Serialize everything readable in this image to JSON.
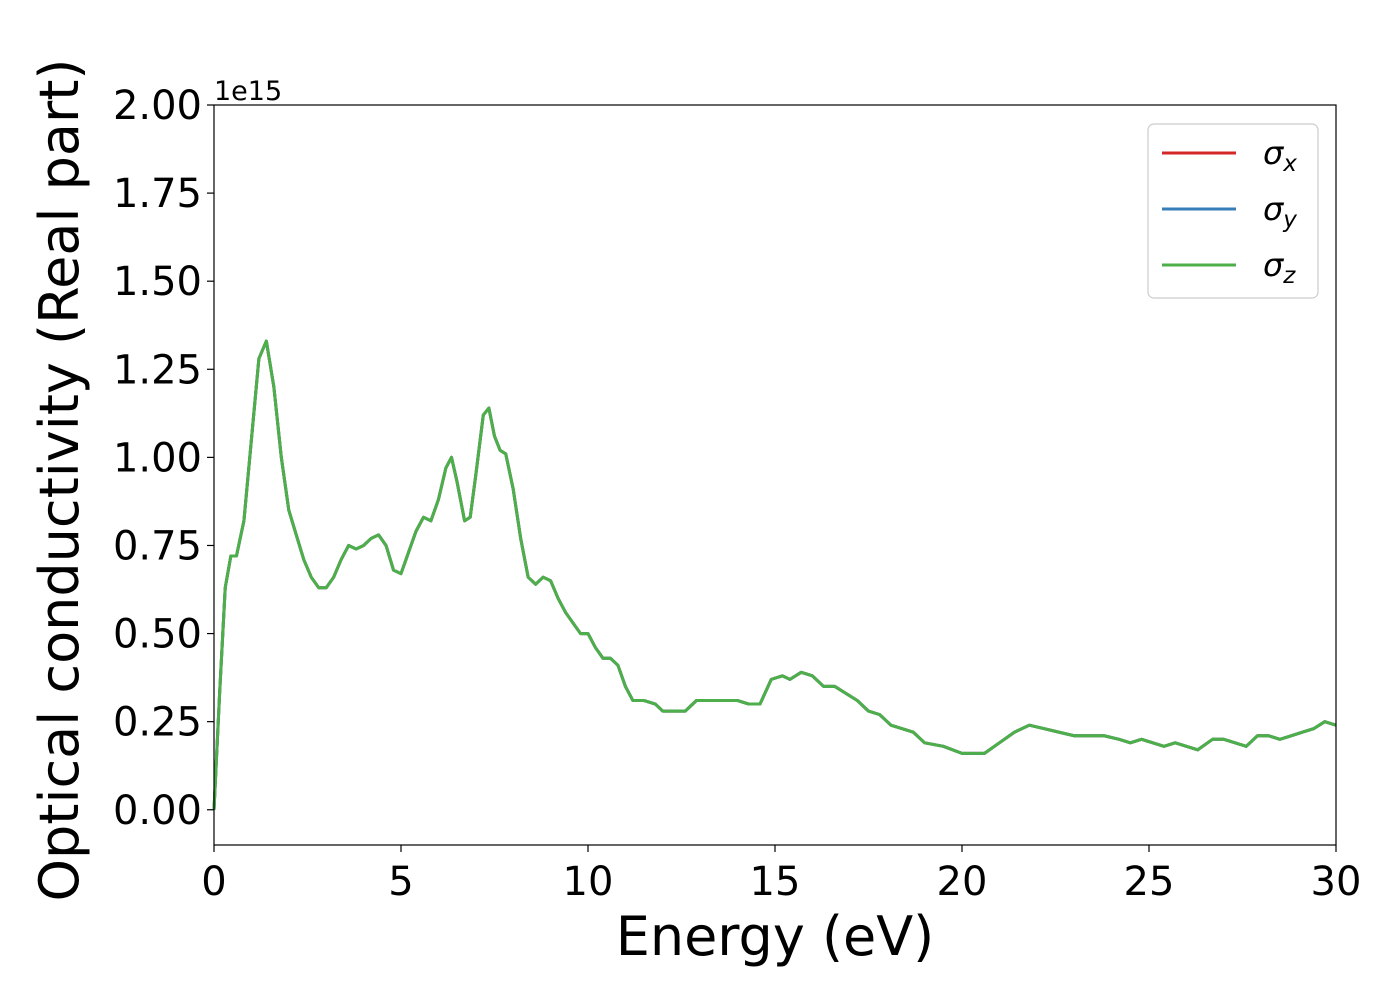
{
  "chart_data": {
    "type": "line",
    "xlabel": "Energy (eV)",
    "ylabel": "Optical conductivity (Real part)",
    "y_offset_label": "1e15",
    "xlim": [
      0,
      30
    ],
    "ylim": [
      -0.1,
      2.0
    ],
    "x_ticks": [
      0,
      5,
      10,
      15,
      20,
      25,
      30
    ],
    "x_tick_labels": [
      "0",
      "5",
      "10",
      "15",
      "20",
      "25",
      "30"
    ],
    "y_ticks": [
      0.0,
      0.25,
      0.5,
      0.75,
      1.0,
      1.25,
      1.5,
      1.75,
      2.0
    ],
    "y_tick_labels": [
      "0.00",
      "0.25",
      "0.50",
      "0.75",
      "1.00",
      "1.25",
      "1.50",
      "1.75",
      "2.00"
    ],
    "grid": false,
    "legend_position": "top-right",
    "x": [
      0.0,
      0.15,
      0.3,
      0.45,
      0.6,
      0.8,
      1.0,
      1.2,
      1.4,
      1.6,
      1.8,
      2.0,
      2.2,
      2.4,
      2.6,
      2.8,
      3.0,
      3.2,
      3.4,
      3.6,
      3.8,
      4.0,
      4.2,
      4.4,
      4.6,
      4.8,
      5.0,
      5.2,
      5.4,
      5.6,
      5.8,
      6.0,
      6.2,
      6.35,
      6.5,
      6.7,
      6.85,
      7.0,
      7.2,
      7.35,
      7.5,
      7.65,
      7.8,
      8.0,
      8.2,
      8.4,
      8.6,
      8.8,
      9.0,
      9.2,
      9.4,
      9.6,
      9.8,
      10.0,
      10.2,
      10.4,
      10.6,
      10.8,
      11.0,
      11.2,
      11.5,
      11.8,
      12.0,
      12.3,
      12.6,
      12.9,
      13.2,
      13.5,
      13.8,
      14.0,
      14.3,
      14.6,
      14.9,
      15.2,
      15.4,
      15.7,
      16.0,
      16.3,
      16.6,
      16.9,
      17.2,
      17.5,
      17.8,
      18.1,
      18.4,
      18.7,
      19.0,
      19.5,
      20.0,
      20.3,
      20.6,
      21.0,
      21.4,
      21.8,
      22.2,
      22.6,
      23.0,
      23.4,
      23.8,
      24.2,
      24.5,
      24.8,
      25.1,
      25.4,
      25.7,
      26.0,
      26.3,
      26.7,
      27.0,
      27.3,
      27.6,
      27.9,
      28.2,
      28.5,
      28.8,
      29.1,
      29.4,
      29.7,
      30.0
    ],
    "series": [
      {
        "name": "σ_x",
        "color": "#d62728",
        "values": [
          0.0,
          0.33,
          0.63,
          0.72,
          0.72,
          0.82,
          1.05,
          1.28,
          1.33,
          1.2,
          1.0,
          0.85,
          0.78,
          0.71,
          0.66,
          0.63,
          0.63,
          0.66,
          0.71,
          0.75,
          0.74,
          0.75,
          0.77,
          0.78,
          0.75,
          0.68,
          0.67,
          0.73,
          0.79,
          0.83,
          0.82,
          0.88,
          0.97,
          1.0,
          0.93,
          0.82,
          0.83,
          0.95,
          1.12,
          1.14,
          1.06,
          1.02,
          1.01,
          0.91,
          0.77,
          0.66,
          0.64,
          0.66,
          0.65,
          0.6,
          0.56,
          0.53,
          0.5,
          0.5,
          0.46,
          0.43,
          0.43,
          0.41,
          0.35,
          0.31,
          0.31,
          0.3,
          0.28,
          0.28,
          0.28,
          0.31,
          0.31,
          0.31,
          0.31,
          0.31,
          0.3,
          0.3,
          0.37,
          0.38,
          0.37,
          0.39,
          0.38,
          0.35,
          0.35,
          0.33,
          0.31,
          0.28,
          0.27,
          0.24,
          0.23,
          0.22,
          0.19,
          0.18,
          0.16,
          0.16,
          0.16,
          0.19,
          0.22,
          0.24,
          0.23,
          0.22,
          0.21,
          0.21,
          0.21,
          0.2,
          0.19,
          0.2,
          0.19,
          0.18,
          0.19,
          0.18,
          0.17,
          0.2,
          0.2,
          0.19,
          0.18,
          0.21,
          0.21,
          0.2,
          0.21,
          0.22,
          0.23,
          0.25,
          0.24
        ]
      },
      {
        "name": "σ_y",
        "color": "#377eb8",
        "values": [
          0.0,
          0.33,
          0.63,
          0.72,
          0.72,
          0.82,
          1.05,
          1.28,
          1.33,
          1.2,
          1.0,
          0.85,
          0.78,
          0.71,
          0.66,
          0.63,
          0.63,
          0.66,
          0.71,
          0.75,
          0.74,
          0.75,
          0.77,
          0.78,
          0.75,
          0.68,
          0.67,
          0.73,
          0.79,
          0.83,
          0.82,
          0.88,
          0.97,
          1.0,
          0.93,
          0.82,
          0.83,
          0.95,
          1.12,
          1.14,
          1.06,
          1.02,
          1.01,
          0.91,
          0.77,
          0.66,
          0.64,
          0.66,
          0.65,
          0.6,
          0.56,
          0.53,
          0.5,
          0.5,
          0.46,
          0.43,
          0.43,
          0.41,
          0.35,
          0.31,
          0.31,
          0.3,
          0.28,
          0.28,
          0.28,
          0.31,
          0.31,
          0.31,
          0.31,
          0.31,
          0.3,
          0.3,
          0.37,
          0.38,
          0.37,
          0.39,
          0.38,
          0.35,
          0.35,
          0.33,
          0.31,
          0.28,
          0.27,
          0.24,
          0.23,
          0.22,
          0.19,
          0.18,
          0.16,
          0.16,
          0.16,
          0.19,
          0.22,
          0.24,
          0.23,
          0.22,
          0.21,
          0.21,
          0.21,
          0.2,
          0.19,
          0.2,
          0.19,
          0.18,
          0.19,
          0.18,
          0.17,
          0.2,
          0.2,
          0.19,
          0.18,
          0.21,
          0.21,
          0.2,
          0.21,
          0.22,
          0.23,
          0.25,
          0.24
        ]
      },
      {
        "name": "σ_z",
        "color": "#4daf4a",
        "values": [
          0.0,
          0.33,
          0.63,
          0.72,
          0.72,
          0.82,
          1.05,
          1.28,
          1.33,
          1.2,
          1.0,
          0.85,
          0.78,
          0.71,
          0.66,
          0.63,
          0.63,
          0.66,
          0.71,
          0.75,
          0.74,
          0.75,
          0.77,
          0.78,
          0.75,
          0.68,
          0.67,
          0.73,
          0.79,
          0.83,
          0.82,
          0.88,
          0.97,
          1.0,
          0.93,
          0.82,
          0.83,
          0.95,
          1.12,
          1.14,
          1.06,
          1.02,
          1.01,
          0.91,
          0.77,
          0.66,
          0.64,
          0.66,
          0.65,
          0.6,
          0.56,
          0.53,
          0.5,
          0.5,
          0.46,
          0.43,
          0.43,
          0.41,
          0.35,
          0.31,
          0.31,
          0.3,
          0.28,
          0.28,
          0.28,
          0.31,
          0.31,
          0.31,
          0.31,
          0.31,
          0.3,
          0.3,
          0.37,
          0.38,
          0.37,
          0.39,
          0.38,
          0.35,
          0.35,
          0.33,
          0.31,
          0.28,
          0.27,
          0.24,
          0.23,
          0.22,
          0.19,
          0.18,
          0.16,
          0.16,
          0.16,
          0.19,
          0.22,
          0.24,
          0.23,
          0.22,
          0.21,
          0.21,
          0.21,
          0.2,
          0.19,
          0.2,
          0.19,
          0.18,
          0.19,
          0.18,
          0.17,
          0.2,
          0.2,
          0.19,
          0.18,
          0.21,
          0.21,
          0.2,
          0.21,
          0.22,
          0.23,
          0.25,
          0.24
        ]
      }
    ],
    "legend": [
      {
        "symbol": "σ",
        "sub": "x",
        "color": "#d62728"
      },
      {
        "symbol": "σ",
        "sub": "y",
        "color": "#377eb8"
      },
      {
        "symbol": "σ",
        "sub": "z",
        "color": "#4daf4a"
      }
    ]
  }
}
